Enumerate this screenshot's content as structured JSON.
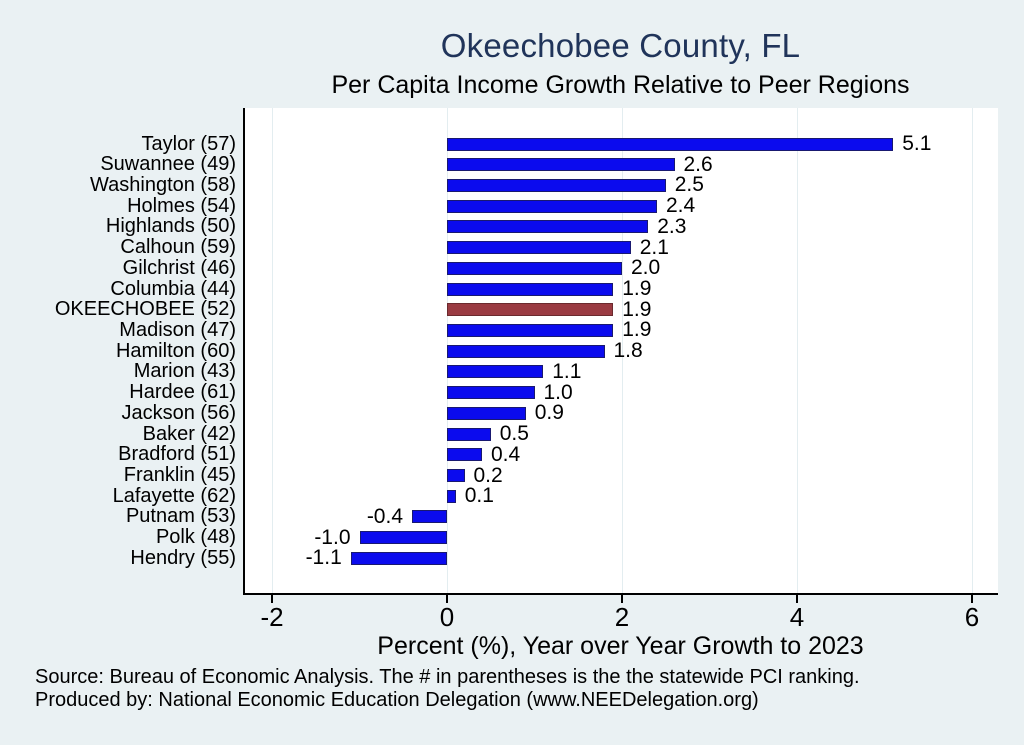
{
  "page": {
    "background": "#eaf1f3"
  },
  "chart_data": {
    "type": "bar",
    "orientation": "horizontal",
    "title": "Okeechobee County, FL",
    "subtitle": "Per Capita Income Growth Relative to Peer Regions",
    "xlabel": "Percent (%), Year over Year Growth to 2023",
    "xticks": [
      "-2",
      "0",
      "2",
      "4",
      "6"
    ],
    "xtick_values": [
      -2,
      0,
      2,
      4,
      6
    ],
    "xlim": [
      -2.33,
      6.3
    ],
    "grid": "vertical",
    "legend": null,
    "categories": [
      "Taylor (57)",
      "Suwannee (49)",
      "Washington (58)",
      "Holmes (54)",
      "Highlands (50)",
      "Calhoun (59)",
      "Gilchrist (46)",
      "Columbia (44)",
      "OKEECHOBEE (52)",
      "Madison (47)",
      "Hamilton (60)",
      "Marion (43)",
      "Hardee (61)",
      "Jackson (56)",
      "Baker (42)",
      "Bradford (51)",
      "Franklin (45)",
      "Lafayette (62)",
      "Putnam (53)",
      "Polk (48)",
      "Hendry (55)"
    ],
    "values": [
      5.1,
      2.6,
      2.5,
      2.4,
      2.3,
      2.1,
      2.0,
      1.9,
      1.9,
      1.9,
      1.8,
      1.1,
      1.0,
      0.9,
      0.5,
      0.4,
      0.2,
      0.1,
      -0.4,
      -1.0,
      -1.1
    ],
    "value_labels": [
      "5.1",
      "2.6",
      "2.5",
      "2.4",
      "2.3",
      "2.1",
      "2.0",
      "1.9",
      "1.9",
      "1.9",
      "1.8",
      "1.1",
      "1.0",
      "0.9",
      "0.5",
      "0.4",
      "0.2",
      "0.1",
      "-0.4",
      "-1.0",
      "-1.1"
    ],
    "highlight_index": 8,
    "colors": {
      "bar_fill": "#0b0bee",
      "bar_border": "#191970",
      "highlight_fill": "#9a3b42",
      "highlight_border": "#6b2a2e",
      "title": "#20345a",
      "grid_line": "#e3edf0",
      "axis_line": "#000000",
      "plot_background": "#ffffff",
      "text": "#000000"
    }
  },
  "notes": {
    "line1": "Source: Bureau of Economic Analysis. The # in parentheses is the the statewide PCI ranking.",
    "line2": "Produced by: National Economic Education Delegation (www.NEEDelegation.org)"
  }
}
